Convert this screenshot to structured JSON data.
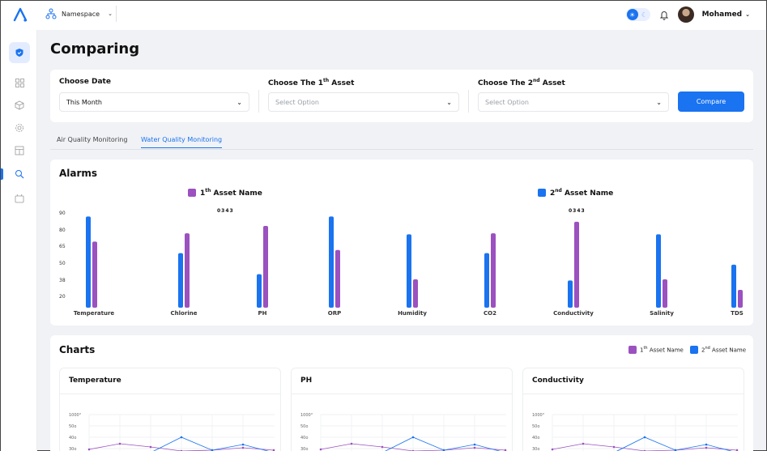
{
  "header": {
    "namespace_label": "Namespace",
    "user_name": "Mohamed"
  },
  "page": {
    "title": "Comparing"
  },
  "filters": {
    "date_label": "Choose Date",
    "date_value": "This Month",
    "asset1_label": "Choose The 1",
    "asset1_sup": "th",
    "asset1_label_suffix": " Asset",
    "asset1_placeholder": "Select Option",
    "asset2_label": "Choose The 2",
    "asset2_sup": "nd",
    "asset2_label_suffix": " Asset",
    "asset2_placeholder": "Select Option",
    "compare_label": "Compare"
  },
  "tabs": [
    {
      "label": "Air Quality Monitoring",
      "active": false
    },
    {
      "label": "Water Quality Monitoring",
      "active": true
    }
  ],
  "alarms": {
    "title": "Alarms",
    "legend": [
      {
        "prefix": "1",
        "sup": "th",
        "suffix": " Asset Name",
        "color": "#9b51c0"
      },
      {
        "prefix": "2",
        "sup": "nd",
        "suffix": " Asset Name",
        "color": "#1a73f0"
      }
    ],
    "code_1": "0343",
    "code_2": "0343"
  },
  "chart_data": {
    "type": "bar",
    "categories": [
      "Temperature",
      "Chlorine",
      "PH",
      "ORP",
      "Humidity",
      "CO2",
      "Conductivity",
      "Salinity",
      "TDS"
    ],
    "y_ticks": [
      "90",
      "80",
      "65",
      "50",
      "38",
      "20"
    ],
    "series": [
      {
        "name": "2nd Asset Name",
        "color": "#1a73f0",
        "values": [
          87,
          52,
          32,
          87,
          70,
          52,
          26,
          70,
          41
        ]
      },
      {
        "name": "1th Asset Name",
        "color": "#9b51c0",
        "values": [
          63,
          71,
          78,
          55,
          27,
          71,
          82,
          27,
          17
        ]
      }
    ]
  },
  "charts": {
    "title": "Charts",
    "legend": [
      {
        "prefix": "1",
        "sup": "th",
        "suffix": " Asset Name",
        "color": "#9b51c0"
      },
      {
        "prefix": "2",
        "sup": "nd",
        "suffix": " Asset Name",
        "color": "#1a73f0"
      }
    ],
    "panels": [
      {
        "title": "Temperature",
        "y_ticks": [
          "1000°",
          "50o",
          "40o",
          "30o"
        ]
      },
      {
        "title": "PH",
        "y_ticks": [
          "1000°",
          "50o",
          "40o",
          "30o"
        ]
      },
      {
        "title": "Conductivity",
        "y_ticks": [
          "1000°",
          "50o",
          "40o",
          "30o"
        ]
      }
    ]
  }
}
